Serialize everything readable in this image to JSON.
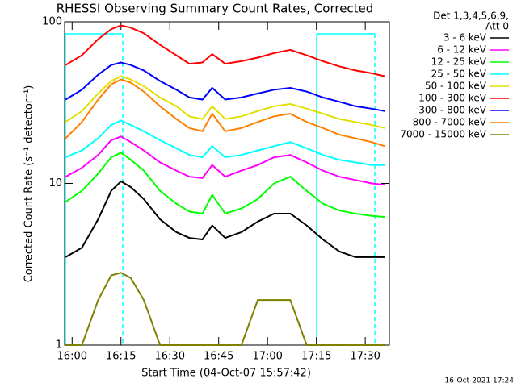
{
  "chart_data": {
    "type": "line",
    "title": "RHESSI Observing Summary Count Rates, Corrected",
    "xlabel": "Start Time (04-Oct-07 15:57:42)",
    "ylabel": "Corrected Count Rate (s⁻¹ detector⁻¹)",
    "legend_header": [
      "Det 1,3,4,5,6,9,",
      "Att 0"
    ],
    "footer": "16-Oct-2021 17:24",
    "ylog": true,
    "ylim": [
      1,
      100
    ],
    "yticks": [
      1,
      10,
      100
    ],
    "xlim": [
      "15:57:42",
      "17:37:24"
    ],
    "xticks": [
      "16:00",
      "16:15",
      "16:30",
      "16:45",
      "17:00",
      "17:15",
      "17:30"
    ],
    "legend": "upper right",
    "x": [
      "15:58",
      "16:03",
      "16:08",
      "16:12",
      "16:15",
      "16:18",
      "16:22",
      "16:27",
      "16:32",
      "16:36",
      "16:40",
      "16:43",
      "16:47",
      "16:52",
      "16:57",
      "17:02",
      "17:07",
      "17:12",
      "17:17",
      "17:22",
      "17:27",
      "17:32",
      "17:36"
    ],
    "series": [
      {
        "name": "3 - 6 keV",
        "color": "#000000",
        "values": [
          3.5,
          4,
          6,
          9,
          10.3,
          9.5,
          8,
          6,
          5,
          4.6,
          4.5,
          5.5,
          4.6,
          5,
          5.8,
          6.5,
          6.5,
          5.5,
          4.5,
          3.8,
          3.5,
          3.5,
          3.5
        ]
      },
      {
        "name": "6 - 12 keV",
        "color": "#ff00ff",
        "values": [
          11,
          12.5,
          15,
          18.5,
          19.5,
          18,
          16,
          13.5,
          12,
          11,
          10.8,
          13,
          11,
          12,
          13,
          14.5,
          15,
          13.5,
          12,
          11,
          10.5,
          10,
          9.8
        ]
      },
      {
        "name": "12 - 25 keV",
        "color": "#00ff00",
        "values": [
          7.7,
          9,
          11.5,
          14.5,
          15.5,
          14,
          12,
          9,
          7.5,
          6.7,
          6.5,
          8.5,
          6.5,
          7,
          8,
          10,
          11,
          9,
          7.5,
          6.8,
          6.5,
          6.3,
          6.2
        ]
      },
      {
        "name": "25 - 50 keV",
        "color": "#00ffff",
        "values": [
          14.5,
          16,
          19,
          23,
          24.5,
          23,
          21,
          18.5,
          16.5,
          15,
          14.5,
          17,
          14.5,
          15,
          16,
          17,
          18,
          16.5,
          15,
          14,
          13.5,
          13,
          13
        ]
      },
      {
        "name": "50 - 100 keV",
        "color": "#e0e000",
        "values": [
          24,
          28,
          36,
          43,
          46,
          44,
          40,
          34,
          30,
          26,
          25,
          30,
          25,
          26,
          28,
          30,
          31,
          29,
          27,
          25,
          24,
          23,
          22
        ]
      },
      {
        "name": "100 - 300 keV",
        "color": "#ff0000",
        "values": [
          54,
          62,
          78,
          90,
          95,
          92,
          85,
          72,
          62,
          55,
          56,
          63,
          55,
          57,
          60,
          64,
          67,
          62,
          57,
          53,
          50,
          48,
          46
        ]
      },
      {
        "name": "300 - 800 keV",
        "color": "#0000ff",
        "values": [
          33,
          38,
          47,
          54,
          56,
          54,
          50,
          43,
          38,
          34,
          33,
          39,
          33,
          34,
          36,
          38,
          39,
          37,
          34,
          32,
          30,
          29,
          28
        ]
      },
      {
        "name": "800 - 7000 keV",
        "color": "#ff8000",
        "values": [
          19,
          24,
          33,
          41,
          44,
          42,
          37,
          30,
          25,
          22,
          21,
          27,
          21,
          22,
          24,
          26,
          27,
          24,
          22,
          20,
          19,
          18,
          17
        ]
      },
      {
        "name": "7000 - 15000 keV",
        "color": "#808000",
        "values": [
          1,
          1,
          1.9,
          2.7,
          2.8,
          2.6,
          1.9,
          1,
          1,
          1,
          1,
          1,
          1,
          1,
          1.9,
          1.9,
          1.9,
          1,
          1,
          1,
          1,
          1,
          1
        ]
      }
    ]
  }
}
